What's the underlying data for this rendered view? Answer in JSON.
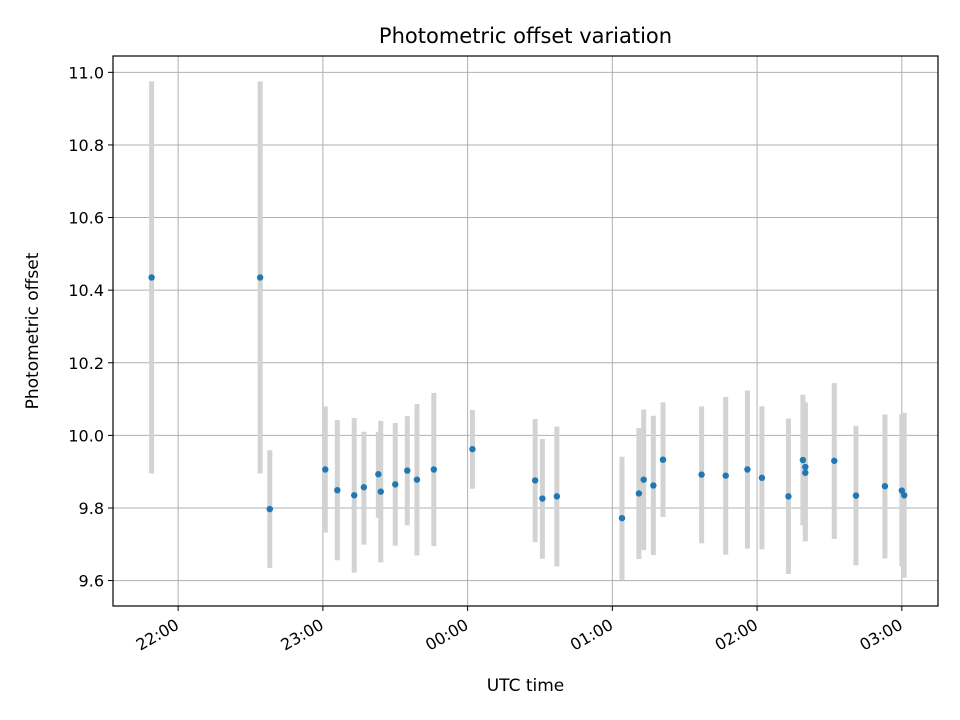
{
  "chart_data": {
    "type": "scatter",
    "title": "Photometric offset variation",
    "xlabel": "UTC time",
    "ylabel": "Photometric offset",
    "x_axis": "time",
    "xlim": [
      "21:33",
      "03:15"
    ],
    "ylim": [
      9.53,
      11.045
    ],
    "x_ticks": [
      "22:00",
      "23:00",
      "00:00",
      "01:00",
      "02:00",
      "03:00"
    ],
    "y_ticks": [
      9.6,
      9.8,
      10.0,
      10.2,
      10.4,
      10.6,
      10.8,
      11.0
    ],
    "grid": true,
    "colors": {
      "point": "#1f77b4",
      "errorbar": "#d3d3d3",
      "grid": "#b0b0b0"
    },
    "series": [
      {
        "points": [
          {
            "x": "21:49",
            "y": 10.435,
            "lo": 9.895,
            "hi": 10.975
          },
          {
            "x": "22:34",
            "y": 10.435,
            "lo": 9.895,
            "hi": 10.975
          },
          {
            "x": "22:38",
            "y": 9.797,
            "lo": 9.635,
            "hi": 9.959
          },
          {
            "x": "23:01",
            "y": 9.906,
            "lo": 9.732,
            "hi": 10.08
          },
          {
            "x": "23:06",
            "y": 9.849,
            "lo": 9.656,
            "hi": 10.042
          },
          {
            "x": "23:13",
            "y": 9.835,
            "lo": 9.622,
            "hi": 10.048
          },
          {
            "x": "23:17",
            "y": 9.857,
            "lo": 9.699,
            "hi": 10.01
          },
          {
            "x": "23:23",
            "y": 9.893,
            "lo": 9.773,
            "hi": 10.01
          },
          {
            "x": "23:24",
            "y": 9.845,
            "lo": 9.65,
            "hi": 10.04
          },
          {
            "x": "23:30",
            "y": 9.865,
            "lo": 9.696,
            "hi": 10.034
          },
          {
            "x": "23:35",
            "y": 9.903,
            "lo": 9.752,
            "hi": 10.053
          },
          {
            "x": "23:39",
            "y": 9.878,
            "lo": 9.669,
            "hi": 10.086
          },
          {
            "x": "23:46",
            "y": 9.906,
            "lo": 9.695,
            "hi": 10.117
          },
          {
            "x": "00:02",
            "y": 9.962,
            "lo": 9.853,
            "hi": 10.07
          },
          {
            "x": "00:28",
            "y": 9.876,
            "lo": 9.706,
            "hi": 10.045
          },
          {
            "x": "00:31",
            "y": 9.826,
            "lo": 9.66,
            "hi": 9.99
          },
          {
            "x": "00:37",
            "y": 9.832,
            "lo": 9.639,
            "hi": 10.024
          },
          {
            "x": "01:04",
            "y": 9.772,
            "lo": 9.602,
            "hi": 9.941
          },
          {
            "x": "01:11",
            "y": 9.84,
            "lo": 9.659,
            "hi": 10.02
          },
          {
            "x": "01:13",
            "y": 9.878,
            "lo": 9.684,
            "hi": 10.071
          },
          {
            "x": "01:17",
            "y": 9.862,
            "lo": 9.67,
            "hi": 10.054
          },
          {
            "x": "01:21",
            "y": 9.933,
            "lo": 9.775,
            "hi": 10.091
          },
          {
            "x": "01:37",
            "y": 9.892,
            "lo": 9.703,
            "hi": 10.08
          },
          {
            "x": "01:47",
            "y": 9.889,
            "lo": 9.671,
            "hi": 10.106
          },
          {
            "x": "01:56",
            "y": 9.906,
            "lo": 9.688,
            "hi": 10.124
          },
          {
            "x": "02:02",
            "y": 9.883,
            "lo": 9.686,
            "hi": 10.08
          },
          {
            "x": "02:13",
            "y": 9.832,
            "lo": 9.618,
            "hi": 10.046
          },
          {
            "x": "02:19",
            "y": 9.932,
            "lo": 9.752,
            "hi": 10.112
          },
          {
            "x": "02:20",
            "y": 9.913,
            "lo": 9.735,
            "hi": 10.091
          },
          {
            "x": "02:20",
            "y": 9.897,
            "lo": 9.708,
            "hi": 10.086
          },
          {
            "x": "02:32",
            "y": 9.93,
            "lo": 9.715,
            "hi": 10.144
          },
          {
            "x": "02:41",
            "y": 9.834,
            "lo": 9.642,
            "hi": 10.026
          },
          {
            "x": "02:53",
            "y": 9.86,
            "lo": 9.661,
            "hi": 10.058
          },
          {
            "x": "03:00",
            "y": 9.848,
            "lo": 9.639,
            "hi": 10.058
          },
          {
            "x": "03:01",
            "y": 9.835,
            "lo": 9.608,
            "hi": 10.062
          }
        ]
      }
    ]
  }
}
